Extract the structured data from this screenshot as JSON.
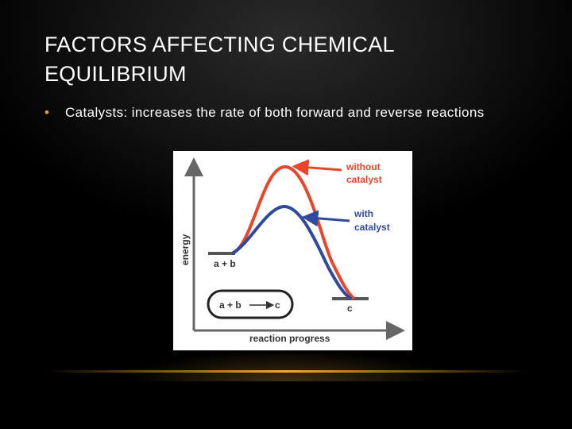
{
  "slide": {
    "title": "FACTORS AFFECTING CHEMICAL EQUILIBRIUM",
    "bullets": [
      {
        "marker": "•",
        "text": "Catalysts: increases the rate of both forward and reverse reactions"
      }
    ]
  },
  "diagram": {
    "axis_y_label": "energy",
    "axis_x_label": "reaction progress",
    "reactant_label": "a + b",
    "product_label": "c",
    "reaction_box": {
      "left": "a + b",
      "right": "c"
    },
    "curves": [
      {
        "name": "without catalyst",
        "label_line1": "without",
        "label_line2": "catalyst",
        "color": "#e8452a"
      },
      {
        "name": "with catalyst",
        "label_line1": "with",
        "label_line2": "catalyst",
        "color": "#2f4a9c"
      }
    ]
  }
}
